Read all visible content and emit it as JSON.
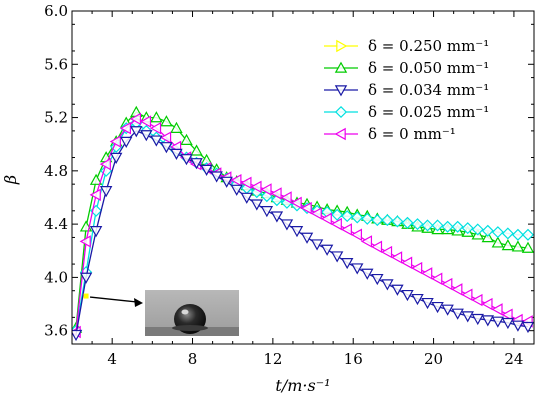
{
  "chart_data": {
    "type": "line",
    "xlabel": "t/m·s⁻¹",
    "ylabel": "β",
    "xlim": [
      2,
      25
    ],
    "ylim": [
      3.5,
      6.0
    ],
    "xticks": [
      4,
      8,
      12,
      16,
      20,
      24
    ],
    "yticks": [
      3.6,
      4.0,
      4.4,
      4.8,
      5.2,
      5.6,
      6.0
    ],
    "xtick_labels": [
      "4",
      "8",
      "12",
      "16",
      "20",
      "24"
    ],
    "ytick_labels": [
      "3.6",
      "4.0",
      "4.4",
      "4.8",
      "5.2",
      "5.6",
      "6.0"
    ],
    "grid": false,
    "legend_position": "top-right",
    "series": [
      {
        "name": "δ = 0.250 mm⁻¹",
        "color": "#ffff00",
        "marker": "triangle-right",
        "x": [
          2.7
        ],
        "y": [
          3.86
        ]
      },
      {
        "name": "δ = 0.050 mm⁻¹",
        "color": "#00cc00",
        "marker": "triangle-up",
        "x": [
          2.2,
          2.7,
          3.2,
          3.7,
          4.2,
          4.7,
          5.2,
          5.7,
          6.2,
          6.7,
          7.2,
          7.7,
          8.2,
          8.7,
          9.2,
          9.7,
          10.2,
          10.7,
          11.2,
          11.7,
          12.2,
          12.7,
          13.2,
          13.7,
          14.2,
          14.7,
          15.2,
          15.7,
          16.2,
          16.7,
          17.2,
          17.7,
          18.2,
          18.7,
          19.2,
          19.7,
          20.2,
          20.7,
          21.2,
          21.7,
          22.2,
          22.7,
          23.2,
          23.7,
          24.2,
          24.7
        ],
        "y": [
          3.62,
          4.38,
          4.73,
          4.9,
          5.02,
          5.16,
          5.24,
          5.2,
          5.2,
          5.17,
          5.12,
          5.03,
          4.95,
          4.88,
          4.81,
          4.75,
          4.72,
          4.69,
          4.65,
          4.63,
          4.6,
          4.58,
          4.56,
          4.55,
          4.53,
          4.51,
          4.5,
          4.49,
          4.47,
          4.46,
          4.44,
          4.43,
          4.42,
          4.4,
          4.38,
          4.37,
          4.36,
          4.36,
          4.35,
          4.34,
          4.32,
          4.3,
          4.26,
          4.24,
          4.23,
          4.22
        ]
      },
      {
        "name": "δ = 0.034 mm⁻¹",
        "color": "#1a1aa6",
        "marker": "triangle-down",
        "x": [
          2.2,
          2.7,
          3.2,
          3.7,
          4.2,
          4.7,
          5.2,
          5.7,
          6.2,
          6.7,
          7.2,
          7.7,
          8.2,
          8.7,
          9.2,
          9.7,
          10.2,
          10.7,
          11.2,
          11.7,
          12.2,
          12.7,
          13.2,
          13.7,
          14.2,
          14.7,
          15.2,
          15.7,
          16.2,
          16.7,
          17.2,
          17.7,
          18.2,
          18.7,
          19.2,
          19.7,
          20.2,
          20.7,
          21.2,
          21.7,
          22.2,
          22.7,
          23.2,
          23.7,
          24.2,
          24.7
        ],
        "y": [
          3.57,
          4.0,
          4.35,
          4.65,
          4.9,
          5.02,
          5.1,
          5.07,
          5.03,
          4.98,
          4.93,
          4.89,
          4.86,
          4.81,
          4.76,
          4.72,
          4.66,
          4.6,
          4.55,
          4.5,
          4.46,
          4.4,
          4.35,
          4.3,
          4.25,
          4.21,
          4.16,
          4.11,
          4.07,
          4.03,
          3.99,
          3.95,
          3.91,
          3.87,
          3.84,
          3.81,
          3.78,
          3.76,
          3.73,
          3.71,
          3.69,
          3.68,
          3.67,
          3.66,
          3.64,
          3.63
        ]
      },
      {
        "name": "δ = 0.025 mm⁻¹",
        "color": "#00e0e0",
        "marker": "diamond",
        "x": [
          2.2,
          2.7,
          3.2,
          3.7,
          4.2,
          4.7,
          5.2,
          5.7,
          6.2,
          6.7,
          7.2,
          7.7,
          8.2,
          8.7,
          9.2,
          9.7,
          10.2,
          10.7,
          11.2,
          11.7,
          12.2,
          12.7,
          13.2,
          13.7,
          14.2,
          14.7,
          15.2,
          15.7,
          16.2,
          16.7,
          17.2,
          17.7,
          18.2,
          18.7,
          19.2,
          19.7,
          20.2,
          20.7,
          21.2,
          21.7,
          22.2,
          22.7,
          23.2,
          23.7,
          24.2,
          24.7
        ],
        "y": [
          3.6,
          4.04,
          4.5,
          4.8,
          4.98,
          5.12,
          5.16,
          5.1,
          5.05,
          5.0,
          4.95,
          4.9,
          4.86,
          4.82,
          4.78,
          4.74,
          4.7,
          4.67,
          4.64,
          4.61,
          4.58,
          4.56,
          4.54,
          4.52,
          4.5,
          4.49,
          4.47,
          4.46,
          4.45,
          4.44,
          4.43,
          4.43,
          4.42,
          4.41,
          4.4,
          4.39,
          4.39,
          4.38,
          4.38,
          4.37,
          4.36,
          4.35,
          4.34,
          4.33,
          4.32,
          4.32
        ]
      },
      {
        "name": "δ = 0 mm⁻¹",
        "color": "#ee00ee",
        "marker": "triangle-left",
        "x": [
          2.2,
          2.7,
          3.2,
          3.7,
          4.2,
          4.7,
          5.2,
          5.7,
          6.2,
          6.7,
          7.2,
          7.7,
          8.2,
          8.7,
          9.2,
          9.7,
          10.2,
          10.7,
          11.2,
          11.7,
          12.2,
          12.7,
          13.2,
          13.7,
          14.2,
          14.7,
          15.2,
          15.7,
          16.2,
          16.7,
          17.2,
          17.7,
          18.2,
          18.7,
          19.2,
          19.7,
          20.2,
          20.7,
          21.2,
          21.7,
          22.2,
          22.7,
          23.2,
          23.7,
          24.2,
          24.7
        ],
        "y": [
          3.59,
          4.27,
          4.62,
          4.85,
          5.02,
          5.12,
          5.19,
          5.17,
          5.12,
          5.05,
          4.98,
          4.9,
          4.85,
          4.82,
          4.78,
          4.75,
          4.73,
          4.71,
          4.68,
          4.66,
          4.63,
          4.6,
          4.56,
          4.52,
          4.48,
          4.44,
          4.4,
          4.36,
          4.32,
          4.27,
          4.23,
          4.19,
          4.15,
          4.11,
          4.07,
          4.03,
          3.99,
          3.95,
          3.91,
          3.87,
          3.83,
          3.8,
          3.76,
          3.72,
          3.68,
          3.67
        ]
      }
    ],
    "inset": {
      "type": "droplet-photo",
      "points_to_x": 2.7,
      "points_to_y": 3.86
    }
  }
}
